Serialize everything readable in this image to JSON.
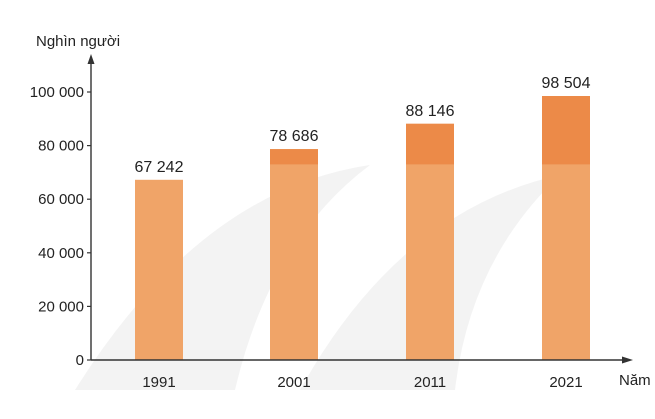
{
  "chart_data": {
    "type": "bar",
    "ylabel": "Nghìn người",
    "xlabel": "Năm",
    "categories": [
      "1991",
      "2001",
      "2011",
      "2021"
    ],
    "values": [
      67242,
      78686,
      88146,
      98504
    ],
    "value_labels": [
      "67 242",
      "78 686",
      "88 146",
      "98 504"
    ],
    "ylim": [
      0,
      100000
    ],
    "y_ticks": [
      0,
      20000,
      40000,
      60000,
      80000,
      100000
    ],
    "y_tick_labels": [
      "0",
      "20 000",
      "40 000",
      "60 000",
      "80 000",
      "100 000"
    ],
    "grid": false,
    "legend": "none",
    "colors": {
      "bar": "#f0a468",
      "bar_top": "#ec8a48",
      "axis": "#333333",
      "watermark": "#f1f1f1"
    }
  }
}
